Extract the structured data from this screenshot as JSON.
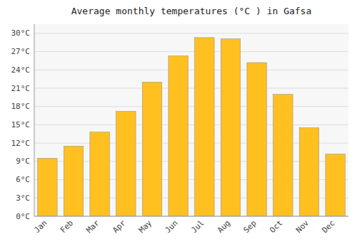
{
  "chart_data": {
    "type": "bar",
    "title": "Average monthly temperatures (°C ) in Gafsa",
    "categories": [
      "Jan",
      "Feb",
      "Mar",
      "Apr",
      "May",
      "Jun",
      "Jul",
      "Aug",
      "Sep",
      "Oct",
      "Nov",
      "Dec"
    ],
    "values": [
      9.5,
      11.5,
      13.8,
      17.2,
      22.0,
      26.3,
      29.3,
      29.1,
      25.2,
      20.0,
      14.5,
      10.2
    ],
    "color": "#FFC020",
    "ylim": [
      0,
      31.5
    ],
    "yticks": [
      {
        "value": 0,
        "label": "0°C"
      },
      {
        "value": 3,
        "label": "3°C"
      },
      {
        "value": 6,
        "label": "6°C"
      },
      {
        "value": 9,
        "label": "9°C"
      },
      {
        "value": 12,
        "label": "12°C"
      },
      {
        "value": 15,
        "label": "15°C"
      },
      {
        "value": 18,
        "label": "18°C"
      },
      {
        "value": 21,
        "label": "21°C"
      },
      {
        "value": 24,
        "label": "24°C"
      },
      {
        "value": 27,
        "label": "27°C"
      },
      {
        "value": 30,
        "label": "30°C"
      }
    ],
    "grid": true
  }
}
